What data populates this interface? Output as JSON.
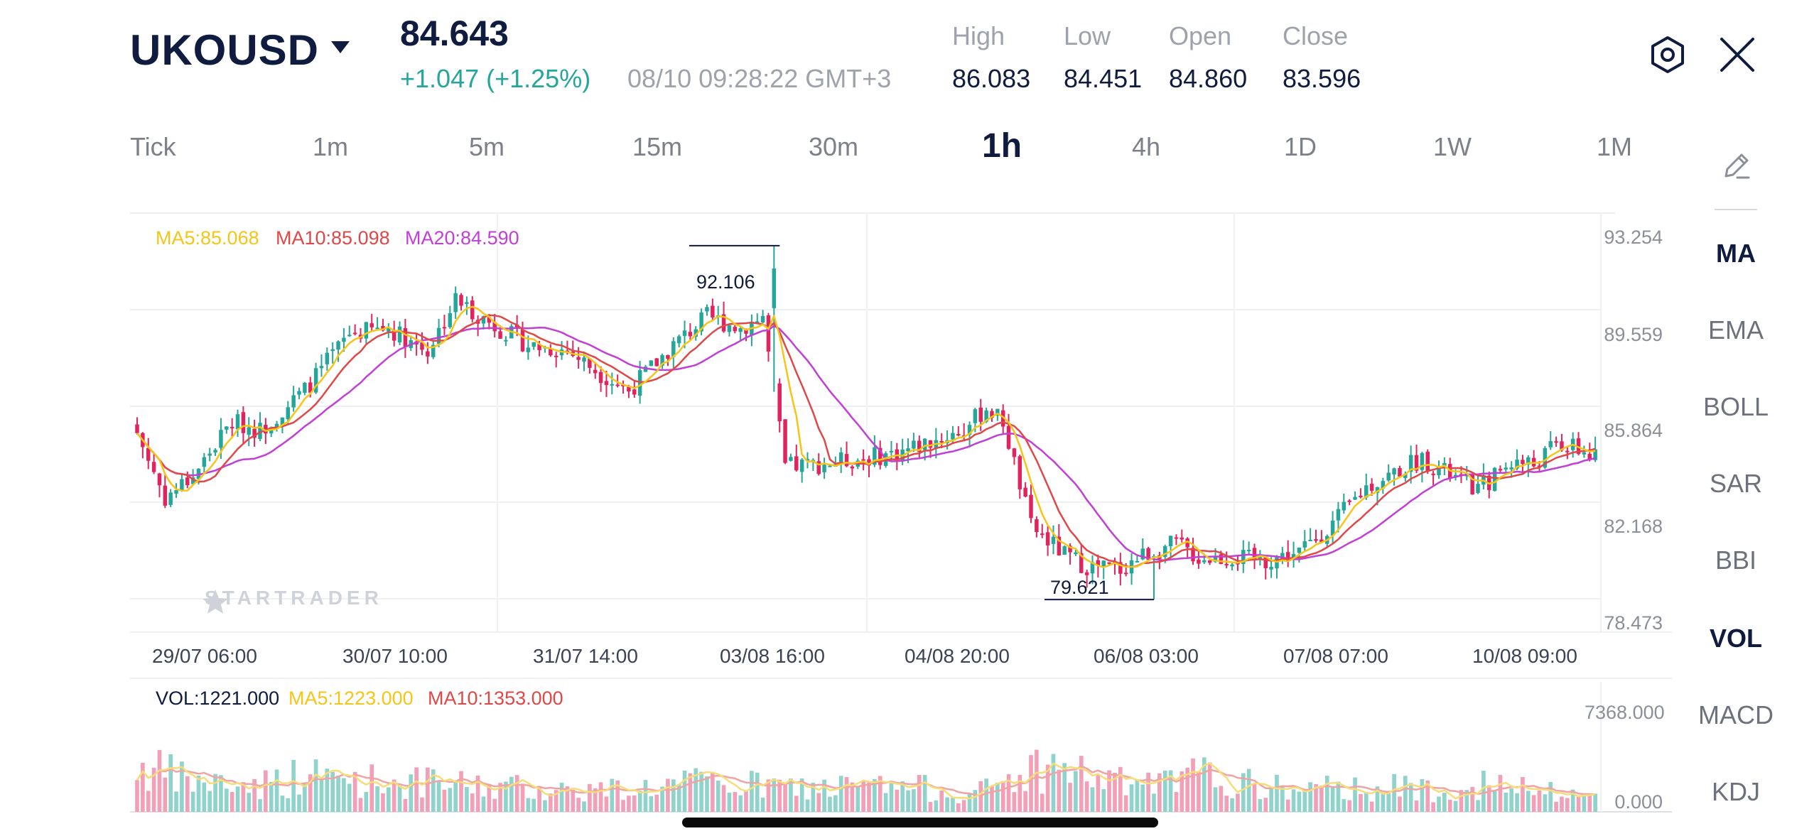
{
  "header": {
    "symbol": "UKOUSD",
    "price": "84.643",
    "change": "+1.047 (+1.25%)",
    "time": "08/10 09:28:22 GMT+3",
    "stats": [
      {
        "label": "High",
        "value": "86.083"
      },
      {
        "label": "Low",
        "value": "84.451"
      },
      {
        "label": "Open",
        "value": "84.860"
      },
      {
        "label": "Close",
        "value": "83.596"
      }
    ]
  },
  "timeframes": [
    "Tick",
    "1m",
    "5m",
    "15m",
    "30m",
    "1h",
    "4h",
    "1D",
    "1W",
    "1M"
  ],
  "active_timeframe": "1h",
  "indicators": [
    "MA",
    "EMA",
    "BOLL",
    "SAR",
    "BBI",
    "VOL",
    "MACD",
    "KDJ"
  ],
  "active_indicators": [
    "MA",
    "VOL"
  ],
  "ma_legend": {
    "ma5": "MA5:85.068",
    "ma10": "MA10:85.098",
    "ma20": "MA20:84.590"
  },
  "vol_legend": {
    "vol": "VOL:1221.000",
    "ma5": "MA5:1223.000",
    "ma10": "MA10:1353.000"
  },
  "price_axis": [
    "93.254",
    "89.559",
    "85.864",
    "82.168",
    "78.473"
  ],
  "volume_axis": [
    "7368.000",
    "0.000"
  ],
  "time_axis": [
    "29/07 06:00",
    "30/07 10:00",
    "31/07 14:00",
    "03/08 16:00",
    "04/08 20:00",
    "06/08 03:00",
    "07/08 07:00",
    "10/08 09:00"
  ],
  "max_marker": "92.106",
  "min_marker": "79.621",
  "watermark": "STARTRADER",
  "colors": {
    "up": "#26a69a",
    "down": "#e0245e",
    "ma5": "#f5c518",
    "ma10": "#e04848",
    "ma20": "#c23fd6",
    "vol_up": "#8fd3cc",
    "vol_down": "#f1a0b7"
  },
  "chart_data": {
    "type": "candlestick",
    "price_range": [
      78.473,
      93.254
    ],
    "volume_range": [
      0,
      7368
    ],
    "series": [
      {
        "name": "MA5",
        "value": 85.068
      },
      {
        "name": "MA10",
        "value": 85.098
      },
      {
        "name": "MA20",
        "value": 84.59
      }
    ],
    "price_path": [
      [
        0,
        85.5
      ],
      [
        5,
        83.2
      ],
      [
        10,
        84.0
      ],
      [
        17,
        85.9
      ],
      [
        22,
        85.6
      ],
      [
        30,
        87.0
      ],
      [
        38,
        89.0
      ],
      [
        45,
        89.2
      ],
      [
        52,
        88.4
      ],
      [
        57,
        90.2
      ],
      [
        63,
        89.4
      ],
      [
        70,
        88.6
      ],
      [
        77,
        88.4
      ],
      [
        83,
        87.6
      ],
      [
        88,
        87.0
      ],
      [
        96,
        88.6
      ],
      [
        102,
        89.6
      ],
      [
        108,
        89.2
      ],
      [
        112,
        89.6
      ],
      [
        116,
        84.3
      ],
      [
        122,
        84.4
      ],
      [
        130,
        84.6
      ],
      [
        136,
        84.8
      ],
      [
        142,
        85.2
      ],
      [
        148,
        85.6
      ],
      [
        152,
        86.4
      ],
      [
        155,
        85.9
      ],
      [
        160,
        82.2
      ],
      [
        166,
        81.2
      ],
      [
        170,
        80.8
      ],
      [
        176,
        80.7
      ],
      [
        180,
        81.2
      ],
      [
        186,
        81.6
      ],
      [
        190,
        81.1
      ],
      [
        196,
        81.1
      ],
      [
        202,
        81.0
      ],
      [
        208,
        81.3
      ],
      [
        214,
        82.3
      ],
      [
        220,
        83.6
      ],
      [
        226,
        84.2
      ],
      [
        230,
        84.6
      ],
      [
        236,
        83.9
      ],
      [
        240,
        83.5
      ],
      [
        246,
        84.5
      ],
      [
        250,
        84.4
      ],
      [
        254,
        85.1
      ],
      [
        258,
        84.9
      ],
      [
        261,
        84.6
      ]
    ],
    "volume_path": [
      [
        0,
        3800
      ],
      [
        10,
        2500
      ],
      [
        20,
        2200
      ],
      [
        30,
        3000
      ],
      [
        40,
        2700
      ],
      [
        50,
        2400
      ],
      [
        60,
        2200
      ],
      [
        70,
        2000
      ],
      [
        80,
        1800
      ],
      [
        90,
        2000
      ],
      [
        100,
        2400
      ],
      [
        110,
        2200
      ],
      [
        120,
        2000
      ],
      [
        130,
        2100
      ],
      [
        140,
        2000
      ],
      [
        150,
        1500
      ],
      [
        160,
        3500
      ],
      [
        166,
        3700
      ],
      [
        170,
        3000
      ],
      [
        176,
        2400
      ],
      [
        186,
        2300
      ],
      [
        190,
        3200
      ],
      [
        196,
        2400
      ],
      [
        202,
        2100
      ],
      [
        210,
        1800
      ],
      [
        220,
        2100
      ],
      [
        230,
        1900
      ],
      [
        240,
        2300
      ],
      [
        250,
        1700
      ],
      [
        261,
        1220
      ]
    ]
  }
}
